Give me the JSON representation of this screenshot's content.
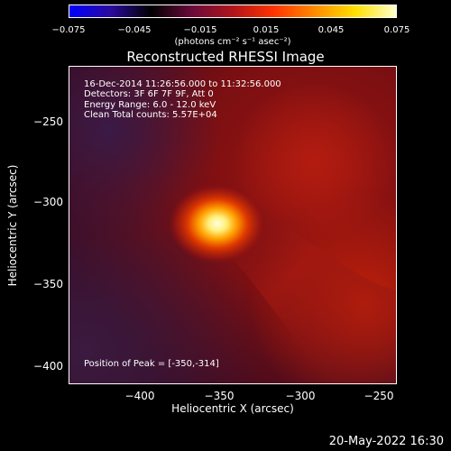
{
  "colorbar": {
    "ticks": [
      "−0.075",
      "−0.045",
      "−0.015",
      "0.015",
      "0.045",
      "0.075"
    ],
    "units": "(photons cm⁻² s⁻¹ asec⁻²)",
    "colormap": [
      "#0000ff",
      "#2a0aa0",
      "#000000",
      "#6a0a3a",
      "#b0141a",
      "#ff3300",
      "#ff8a00",
      "#ffe000",
      "#ffffcc"
    ]
  },
  "title": "Reconstructed RHESSI Image",
  "info": {
    "line1": "16-Dec-2014 11:26:56.000 to 11:32:56.000",
    "line2": "Detectors: 3F 6F 7F 9F, Att 0",
    "line3": "Energy Range: 6.0 - 12.0 keV",
    "line4": "Clean    Total counts: 5.57E+04"
  },
  "peak": "Position of Peak = [-350,-314]",
  "axes": {
    "ylabel": "Heliocentric Y (arcsec)",
    "xlabel": "Heliocentric X (arcsec)",
    "yticks": [
      "−250",
      "−300",
      "−350",
      "−400"
    ],
    "xticks": [
      "−400",
      "−350",
      "−300",
      "−250"
    ]
  },
  "stamp": "20-May-2022 16:30"
}
